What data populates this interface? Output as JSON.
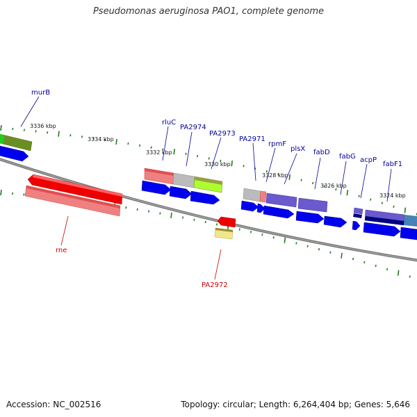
{
  "title": "Pseudomonas aeruginosa PAO1, complete genome",
  "footer": {
    "accession": "Accession: NC_002516",
    "stats": "Topology: circular; Length: 6,264,404 bp; Genes: 5,646"
  },
  "ticks": [
    "3336 kbp",
    "3334 kbp",
    "3332 kbp",
    "3330 kbp",
    "3328 kbp",
    "3326 kbp",
    "3324 kbp"
  ],
  "gene_labels": [
    "murB",
    "rluC",
    "PA2974",
    "PA2973",
    "PA2971",
    "rpmF",
    "plsX",
    "fabD",
    "fabG",
    "acpP",
    "fabF1",
    "rne",
    "PA2972"
  ],
  "colors": {
    "backbone": "#7a7a7a",
    "tick": "#1f7a1f",
    "label_blue": "#000099",
    "label_red": "#cc0000",
    "cds_blue": "#0000ee",
    "gene_red": "#ee0000",
    "gene_pink": "#f08080",
    "gene_gray": "#bbbbbb",
    "gene_olive": "#6b8e23",
    "gene_lime": "#adff2f",
    "gene_tan": "#f0e68c",
    "gene_purple": "#6a5acd",
    "gene_navy": "#000080",
    "gene_steel": "#4682b4"
  }
}
